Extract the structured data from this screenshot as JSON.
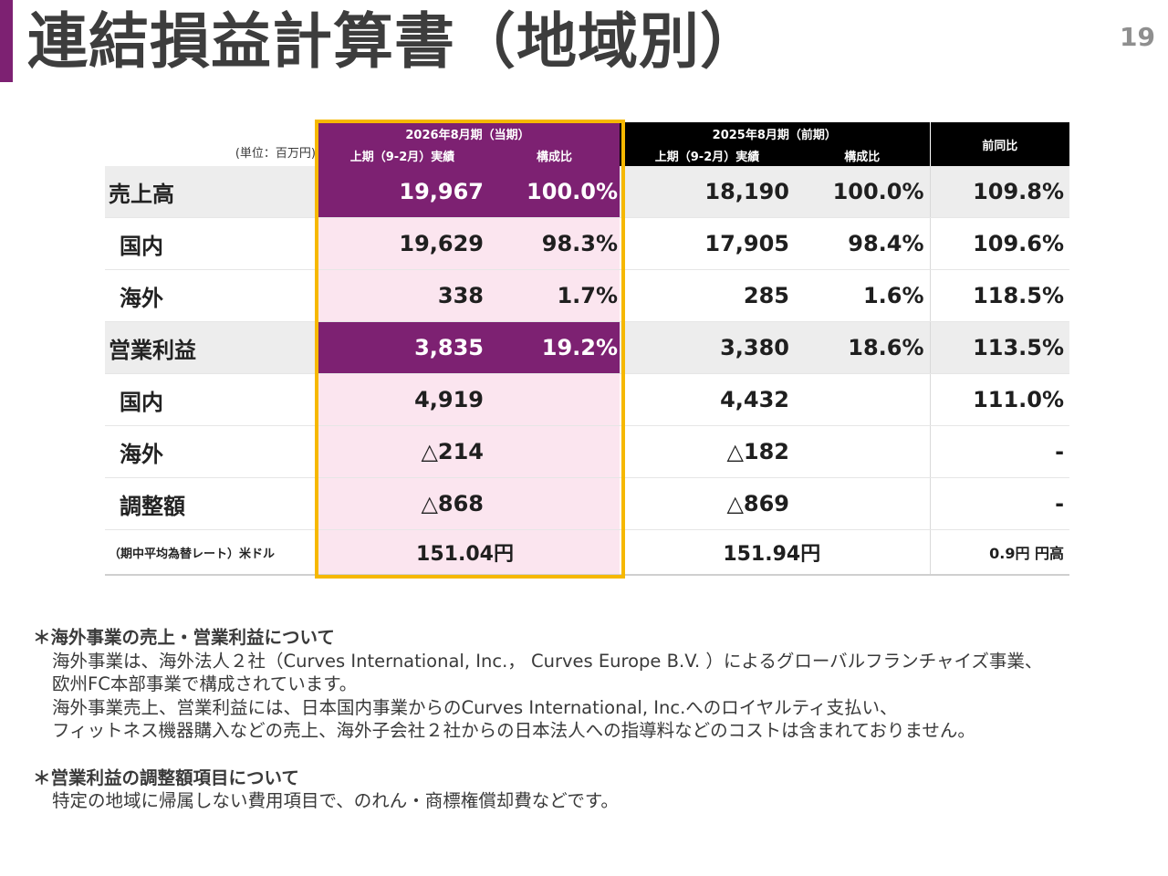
{
  "page": {
    "title": "連結損益計算書（地域別）",
    "number": "19"
  },
  "table": {
    "unit_label": "(単位：百万円)",
    "current_period": "2026年8月期（当期）",
    "prior_period": "2025年8月期（前期）",
    "results_label": "上期（9-2月）実績",
    "ratio_label": "構成比",
    "yoy_label": "前同比",
    "rows": [
      {
        "label": "売上高",
        "cur": "19,967",
        "cur_ratio": "100.0%",
        "prev": "18,190",
        "prev_ratio": "100.0%",
        "yoy": "109.8%"
      },
      {
        "label": "国内",
        "cur": "19,629",
        "cur_ratio": "98.3%",
        "prev": "17,905",
        "prev_ratio": "98.4%",
        "yoy": "109.6%"
      },
      {
        "label": "海外",
        "cur": "338",
        "cur_ratio": "1.7%",
        "prev": "285",
        "prev_ratio": "1.6%",
        "yoy": "118.5%"
      },
      {
        "label": "営業利益",
        "cur": "3,835",
        "cur_ratio": "19.2%",
        "prev": "3,380",
        "prev_ratio": "18.6%",
        "yoy": "113.5%"
      },
      {
        "label": "国内",
        "cur": "4,919",
        "cur_ratio": "",
        "prev": "4,432",
        "prev_ratio": "",
        "yoy": "111.0%"
      },
      {
        "label": "海外",
        "cur": "△214",
        "cur_ratio": "",
        "prev": "△182",
        "prev_ratio": "",
        "yoy": "-"
      },
      {
        "label": "調整額",
        "cur": "△868",
        "cur_ratio": "",
        "prev": "△869",
        "prev_ratio": "",
        "yoy": "-"
      }
    ],
    "rate": {
      "label": "（期中平均為替レート）米ドル",
      "cur": "151.04円",
      "prev": "151.94円",
      "yoy": "0.9円 円高"
    }
  },
  "notes": {
    "overseas_heading": "＊海外事業の売上・営業利益について",
    "overseas_lines": [
      "海外事業は、海外法人２社（Curves International, Inc.， Curves Europe B.V. ）によるグローバルフランチャイズ事業、",
      "欧州FC本部事業で構成されています。",
      "海外事業売上、営業利益には、日本国内事業からのCurves International, Inc.へのロイヤルティ支払い、",
      "フィットネス機器購入などの売上、海外子会社２社からの日本法人への指導料などのコストは含まれておりません。"
    ],
    "adjust_heading": "＊営業利益の調整額項目について",
    "adjust_lines": [
      "特定の地域に帰属しない費用項目で、のれん・商標権償却費などです。"
    ]
  }
}
